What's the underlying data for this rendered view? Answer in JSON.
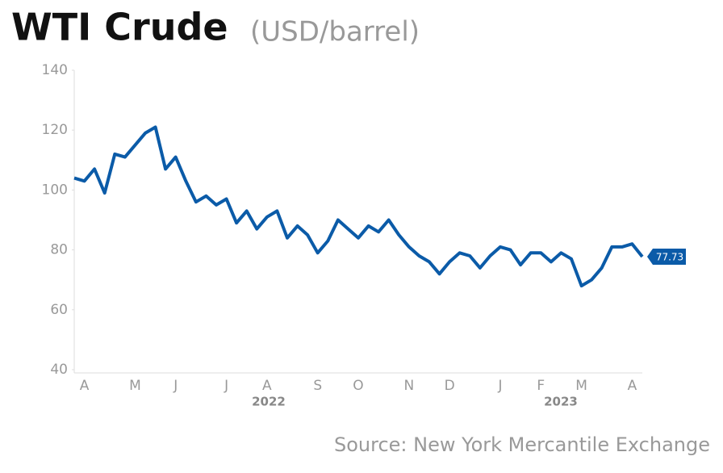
{
  "chart_data": {
    "type": "line",
    "title": "WTI Crude",
    "subtitle": "(USD/barrel)",
    "source": "Source: New York Mercantile Exchange",
    "categories": [
      null,
      "A",
      null,
      null,
      null,
      null,
      "M",
      null,
      null,
      null,
      "J",
      null,
      null,
      null,
      null,
      "J",
      null,
      null,
      null,
      "A",
      null,
      null,
      null,
      null,
      "S",
      null,
      null,
      null,
      "O",
      null,
      null,
      null,
      null,
      "N",
      null,
      null,
      null,
      "D",
      null,
      null,
      null,
      null,
      "J",
      null,
      null,
      null,
      "F",
      null,
      null,
      null,
      "M",
      null,
      null,
      null,
      null,
      "A",
      null
    ],
    "x_group_labels": [
      "2022",
      "2023"
    ],
    "series": [
      {
        "name": "WTI Crude",
        "color": "#0b5ba8",
        "values": [
          104,
          103,
          107,
          99,
          112,
          111,
          115,
          119,
          121,
          107,
          111,
          103,
          96,
          98,
          95,
          97,
          89,
          93,
          87,
          91,
          93,
          84,
          88,
          85,
          79,
          83,
          90,
          87,
          84,
          88,
          86,
          90,
          85,
          81,
          78,
          76,
          72,
          76,
          79,
          78,
          74,
          78,
          81,
          80,
          75,
          79,
          79,
          76,
          79,
          77,
          68,
          70,
          74,
          81,
          81,
          82,
          77.73
        ]
      }
    ],
    "ylim": [
      40,
      140
    ],
    "yticks": [
      40,
      60,
      80,
      100,
      120,
      140
    ],
    "grid": false
  }
}
